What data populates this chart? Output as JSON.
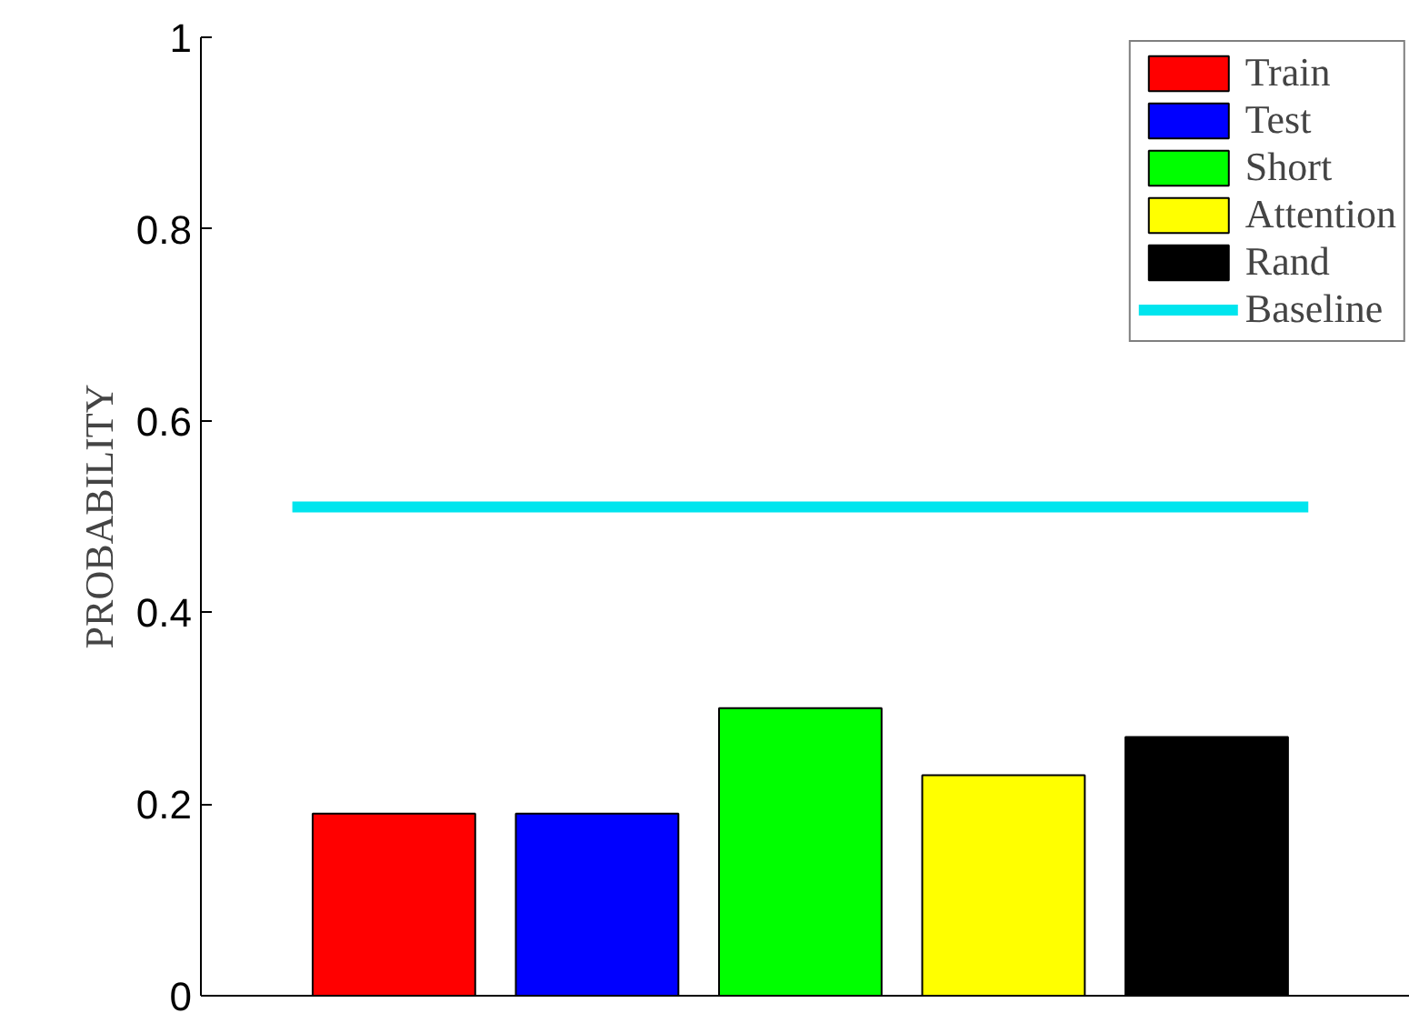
{
  "chart_data": {
    "type": "bar",
    "ylabel": "PROBABILITY",
    "categories": [
      null,
      null,
      null,
      null,
      null
    ],
    "series": [
      {
        "name": "Train",
        "color": "#ff0000",
        "values": [
          0.19,
          null,
          null,
          null,
          null
        ]
      },
      {
        "name": "Test",
        "color": "#0000ff",
        "values": [
          null,
          0.19,
          null,
          null,
          null
        ]
      },
      {
        "name": "Short",
        "color": "#00ff00",
        "values": [
          null,
          null,
          0.3,
          null,
          null
        ]
      },
      {
        "name": "Attention",
        "color": "#ffff00",
        "values": [
          null,
          null,
          null,
          0.23,
          null
        ]
      },
      {
        "name": "Rand",
        "color": "#000000",
        "values": [
          null,
          null,
          null,
          null,
          0.27
        ]
      }
    ],
    "ref_lines": [
      {
        "axis": "y",
        "value": 0.51,
        "label": "Baseline",
        "color": "#00e5ee"
      }
    ],
    "ylim": [
      0,
      1
    ],
    "yticks": [
      0,
      0.2,
      0.4,
      0.6,
      0.8,
      1
    ],
    "grid": false,
    "legend": "top right"
  }
}
